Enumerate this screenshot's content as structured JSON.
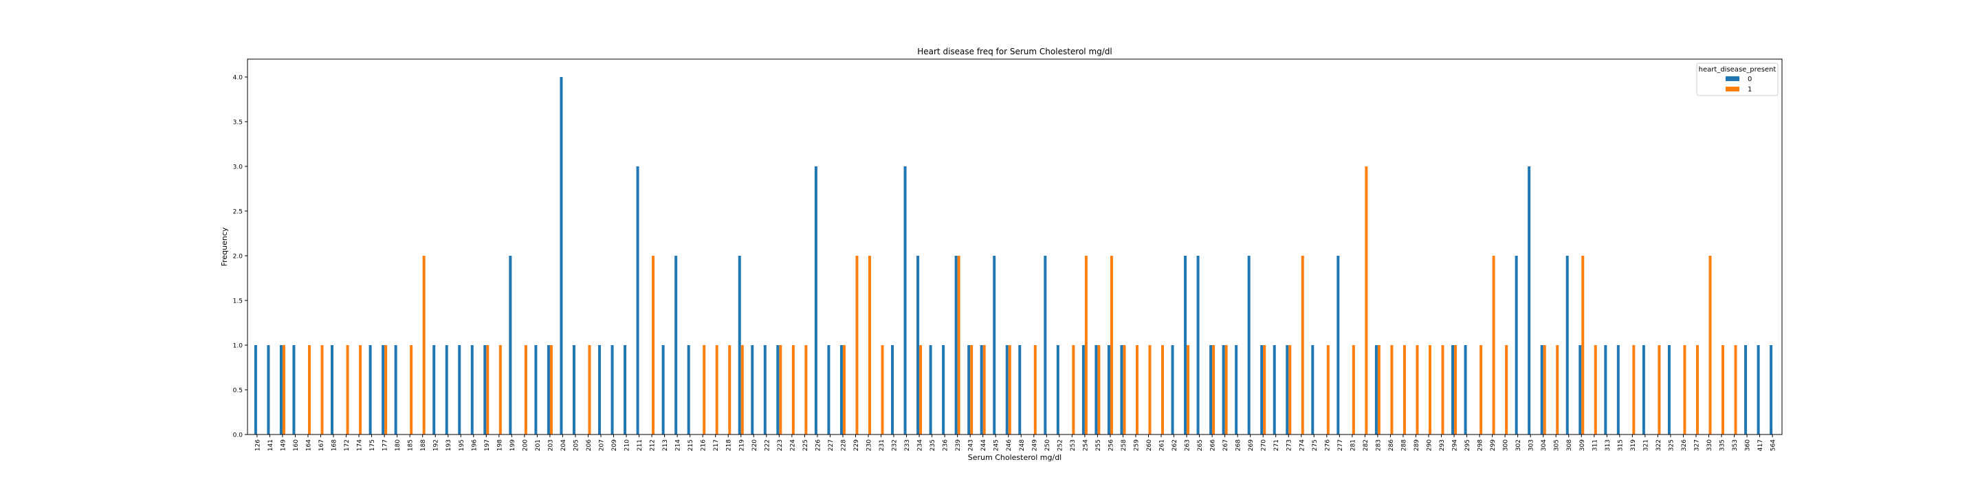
{
  "chart_data": {
    "type": "bar",
    "title": "Heart disease freq for Serum Cholesterol mg/dl",
    "xlabel": "Serum Cholesterol mg/dl",
    "ylabel": "Frequency",
    "ylim": [
      0,
      4.2
    ],
    "yticks": [
      0.0,
      0.5,
      1.0,
      1.5,
      2.0,
      2.5,
      3.0,
      3.5,
      4.0
    ],
    "ytick_labels": [
      "0.0",
      "0.5",
      "1.0",
      "1.5",
      "2.0",
      "2.5",
      "3.0",
      "3.5",
      "4.0"
    ],
    "grid": false,
    "legend": {
      "title": "heart_disease_present",
      "position": "top-right"
    },
    "categories": [
      "126",
      "141",
      "149",
      "160",
      "164",
      "167",
      "168",
      "172",
      "174",
      "175",
      "177",
      "180",
      "185",
      "188",
      "192",
      "193",
      "195",
      "196",
      "197",
      "198",
      "199",
      "200",
      "201",
      "203",
      "204",
      "205",
      "206",
      "207",
      "209",
      "210",
      "211",
      "212",
      "213",
      "214",
      "215",
      "216",
      "217",
      "218",
      "219",
      "220",
      "222",
      "223",
      "224",
      "225",
      "226",
      "227",
      "228",
      "229",
      "230",
      "231",
      "232",
      "233",
      "234",
      "235",
      "236",
      "239",
      "243",
      "244",
      "245",
      "246",
      "248",
      "249",
      "250",
      "252",
      "253",
      "254",
      "255",
      "256",
      "258",
      "259",
      "260",
      "261",
      "262",
      "263",
      "265",
      "266",
      "267",
      "268",
      "269",
      "270",
      "271",
      "273",
      "274",
      "275",
      "276",
      "277",
      "281",
      "282",
      "283",
      "286",
      "288",
      "289",
      "290",
      "293",
      "294",
      "295",
      "298",
      "299",
      "300",
      "302",
      "303",
      "304",
      "305",
      "308",
      "309",
      "311",
      "313",
      "315",
      "319",
      "321",
      "322",
      "325",
      "326",
      "327",
      "330",
      "335",
      "353",
      "360",
      "417",
      "564"
    ],
    "series": [
      {
        "name": "0",
        "color": "#1f77b4",
        "values": [
          1,
          1,
          1,
          1,
          0,
          0,
          1,
          0,
          0,
          1,
          1,
          1,
          0,
          0,
          1,
          1,
          1,
          1,
          1,
          0,
          2,
          0,
          1,
          1,
          4,
          1,
          0,
          1,
          1,
          1,
          3,
          0,
          1,
          2,
          1,
          0,
          0,
          0,
          2,
          1,
          1,
          1,
          0,
          0,
          3,
          1,
          1,
          0,
          0,
          0,
          1,
          3,
          2,
          1,
          1,
          2,
          1,
          1,
          2,
          1,
          1,
          0,
          2,
          1,
          0,
          1,
          1,
          1,
          1,
          0,
          0,
          0,
          1,
          2,
          2,
          1,
          1,
          1,
          2,
          1,
          1,
          1,
          0,
          1,
          0,
          2,
          0,
          0,
          1,
          0,
          0,
          0,
          0,
          0,
          1,
          1,
          0,
          0,
          0,
          2,
          3,
          1,
          0,
          2,
          1,
          0,
          1,
          1,
          0,
          1,
          0,
          1,
          0,
          0,
          0,
          0,
          0,
          1,
          1,
          1
        ]
      },
      {
        "name": "1",
        "color": "#ff7f0e",
        "values": [
          0,
          0,
          1,
          0,
          1,
          1,
          0,
          1,
          1,
          0,
          1,
          0,
          1,
          2,
          0,
          0,
          0,
          0,
          1,
          1,
          0,
          1,
          0,
          1,
          0,
          0,
          1,
          0,
          0,
          0,
          0,
          2,
          0,
          0,
          0,
          1,
          1,
          1,
          1,
          0,
          0,
          1,
          1,
          1,
          0,
          0,
          1,
          2,
          2,
          1,
          0,
          0,
          1,
          0,
          0,
          2,
          1,
          1,
          0,
          1,
          0,
          1,
          0,
          0,
          1,
          2,
          1,
          2,
          1,
          1,
          1,
          1,
          0,
          1,
          0,
          1,
          1,
          0,
          0,
          1,
          0,
          1,
          2,
          0,
          1,
          0,
          1,
          3,
          1,
          1,
          1,
          1,
          1,
          1,
          1,
          0,
          1,
          2,
          1,
          0,
          0,
          1,
          1,
          0,
          2,
          1,
          0,
          0,
          1,
          0,
          1,
          0,
          1,
          1,
          2,
          1,
          1,
          0,
          0,
          0
        ]
      }
    ]
  }
}
